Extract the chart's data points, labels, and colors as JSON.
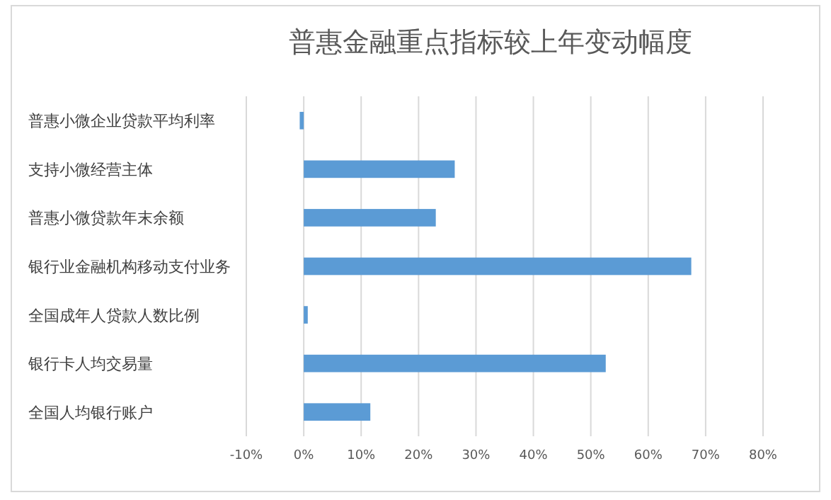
{
  "chart_data": {
    "type": "bar",
    "orientation": "horizontal",
    "title": "普惠金融重点指标较上年变动幅度",
    "categories": [
      "普惠小微企业贷款平均利率",
      "支持小微经营主体",
      "普惠小微贷款年末余额",
      "银行业金融机构移动支付业务",
      "全国成年人贷款人数比例",
      "银行卡人均交易量",
      "全国人均银行账户"
    ],
    "values": [
      -0.7,
      26.3,
      23.0,
      67.5,
      0.7,
      52.6,
      11.6
    ],
    "color": "#5b9bd5",
    "xlim": [
      -10,
      80
    ],
    "xticks": [
      {
        "value": -10,
        "label": "-10%"
      },
      {
        "value": 0,
        "label": "0%"
      },
      {
        "value": 10,
        "label": "10%"
      },
      {
        "value": 20,
        "label": "20%"
      },
      {
        "value": 30,
        "label": "30%"
      },
      {
        "value": 40,
        "label": "40%"
      },
      {
        "value": 50,
        "label": "50%"
      },
      {
        "value": 60,
        "label": "60%"
      },
      {
        "value": 70,
        "label": "70%"
      },
      {
        "value": 80,
        "label": "80%"
      }
    ],
    "grid": "x"
  }
}
